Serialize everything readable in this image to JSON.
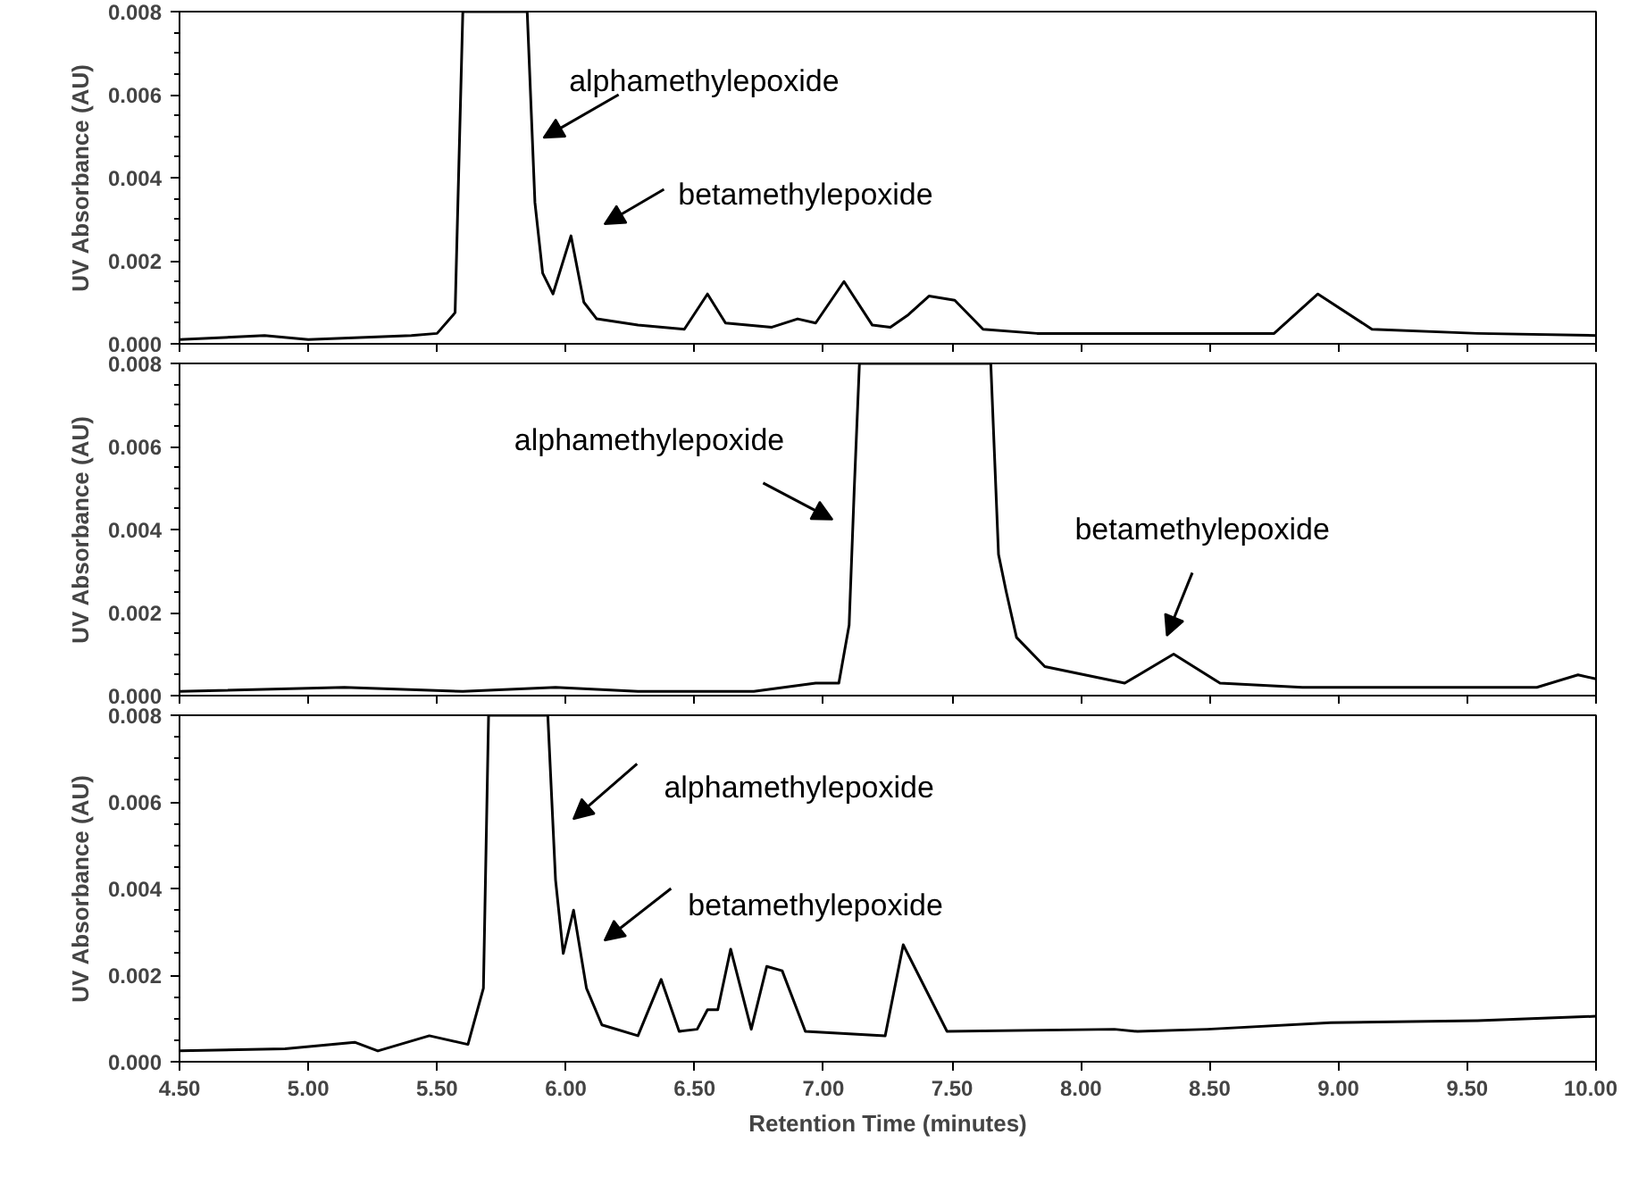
{
  "chart_data": [
    {
      "type": "line",
      "ylabel": "UV Absorbance (AU)",
      "tick_labels": "y",
      "grid": false,
      "xlim": [
        4.5,
        10.0
      ],
      "ylim": [
        0,
        0.008
      ],
      "xticks": [
        {
          "value": 4.5,
          "label": null
        },
        {
          "value": 5.0,
          "label": null
        },
        {
          "value": 5.5,
          "label": null
        },
        {
          "value": 6.0,
          "label": null
        },
        {
          "value": 6.5,
          "label": null
        },
        {
          "value": 7.0,
          "label": null
        },
        {
          "value": 7.5,
          "label": null
        },
        {
          "value": 8.0,
          "label": null
        },
        {
          "value": 8.5,
          "label": null
        },
        {
          "value": 9.0,
          "label": null
        },
        {
          "value": 9.5,
          "label": null
        },
        {
          "value": 10.0,
          "label": null
        }
      ],
      "yticks": [
        {
          "value": 0,
          "label": "0.000"
        },
        {
          "value": 0.002,
          "label": "0.002"
        },
        {
          "value": 0.004,
          "label": "0.004"
        },
        {
          "value": 0.006,
          "label": "0.006"
        },
        {
          "value": 0.008,
          "label": "0.008"
        }
      ],
      "series": [
        {
          "color": "#000000",
          "x": [
            4.5,
            4.83,
            5.0,
            5.4,
            5.5,
            5.57,
            5.6,
            5.85,
            5.88,
            5.91,
            5.95,
            6.02,
            6.07,
            6.12,
            6.28,
            6.46,
            6.55,
            6.62,
            6.8,
            6.9,
            6.97,
            7.08,
            7.19,
            7.26,
            7.33,
            7.41,
            7.51,
            7.62,
            7.83,
            8.75,
            8.92,
            9.13,
            9.54,
            10.0
          ],
          "values": [
            0.0001,
            0.0002,
            0.0001,
            0.0002,
            0.00025,
            0.00075,
            0.008,
            0.008,
            0.0034,
            0.0017,
            0.0012,
            0.0026,
            0.001,
            0.0006,
            0.00045,
            0.00035,
            0.0012,
            0.0005,
            0.0004,
            0.0006,
            0.0005,
            0.0015,
            0.00045,
            0.0004,
            0.0007,
            0.00115,
            0.00105,
            0.00035,
            0.00025,
            0.00025,
            0.0012,
            0.00035,
            0.00025,
            0.0002
          ]
        }
      ],
      "annotations": [
        "alphamethylepoxide",
        "betamethylepoxide"
      ]
    },
    {
      "type": "line",
      "ylabel": "UV Absorbance (AU)",
      "tick_labels": "y",
      "grid": false,
      "xlim": [
        4.5,
        10.0
      ],
      "ylim": [
        0,
        0.008
      ],
      "xticks": [
        {
          "value": 4.5,
          "label": null
        },
        {
          "value": 5.0,
          "label": null
        },
        {
          "value": 5.5,
          "label": null
        },
        {
          "value": 6.0,
          "label": null
        },
        {
          "value": 6.5,
          "label": null
        },
        {
          "value": 7.0,
          "label": null
        },
        {
          "value": 7.5,
          "label": null
        },
        {
          "value": 8.0,
          "label": null
        },
        {
          "value": 8.5,
          "label": null
        },
        {
          "value": 9.0,
          "label": null
        },
        {
          "value": 9.5,
          "label": null
        },
        {
          "value": 10.0,
          "label": null
        }
      ],
      "yticks": [
        {
          "value": 0,
          "label": "0.000"
        },
        {
          "value": 0.002,
          "label": "0.002"
        },
        {
          "value": 0.004,
          "label": "0.004"
        },
        {
          "value": 0.006,
          "label": "0.006"
        },
        {
          "value": 0.008,
          "label": "0.008"
        }
      ],
      "series": [
        {
          "color": "#000000",
          "x": [
            4.5,
            5.14,
            5.6,
            5.96,
            6.28,
            6.73,
            6.97,
            7.06,
            7.1,
            7.12,
            7.14,
            7.65,
            7.68,
            7.71,
            7.75,
            7.86,
            8.17,
            8.36,
            8.54,
            8.86,
            9.77,
            9.93,
            10.0
          ],
          "values": [
            0.0001,
            0.0002,
            0.0001,
            0.0002,
            0.0001,
            0.0001,
            0.0003,
            0.0003,
            0.0017,
            0.005,
            0.008,
            0.008,
            0.0034,
            0.0025,
            0.0014,
            0.0007,
            0.0003,
            0.001,
            0.0003,
            0.0002,
            0.0002,
            0.0005,
            0.0004
          ]
        }
      ],
      "annotations": [
        "alphamethylepoxide",
        "betamethylepoxide"
      ]
    },
    {
      "type": "line",
      "ylabel": "UV Absorbance (AU)",
      "xlabel": "Retention Time (minutes)",
      "grid": false,
      "xlim": [
        4.5,
        10.0
      ],
      "ylim": [
        0,
        0.008
      ],
      "xticks": [
        {
          "value": 4.5,
          "label": "4.50"
        },
        {
          "value": 5.0,
          "label": "5.00"
        },
        {
          "value": 5.5,
          "label": "5.50"
        },
        {
          "value": 6.0,
          "label": "6.00"
        },
        {
          "value": 6.5,
          "label": "6.50"
        },
        {
          "value": 7.0,
          "label": "7.00"
        },
        {
          "value": 7.5,
          "label": "7.50"
        },
        {
          "value": 8.0,
          "label": "8.00"
        },
        {
          "value": 8.5,
          "label": "8.50"
        },
        {
          "value": 9.0,
          "label": "9.00"
        },
        {
          "value": 9.5,
          "label": "9.50"
        },
        {
          "value": 10.0,
          "label": "10.00"
        }
      ],
      "yticks": [
        {
          "value": 0,
          "label": "0.000"
        },
        {
          "value": 0.002,
          "label": "0.002"
        },
        {
          "value": 0.004,
          "label": "0.004"
        },
        {
          "value": 0.006,
          "label": "0.006"
        },
        {
          "value": 0.008,
          "label": "0.008"
        }
      ],
      "series": [
        {
          "color": "#000000",
          "x": [
            4.5,
            4.91,
            5.18,
            5.27,
            5.47,
            5.62,
            5.68,
            5.7,
            5.93,
            5.96,
            5.99,
            6.03,
            6.08,
            6.14,
            6.28,
            6.37,
            6.44,
            6.51,
            6.55,
            6.59,
            6.64,
            6.72,
            6.78,
            6.84,
            6.93,
            7.24,
            7.31,
            7.48,
            8.13,
            8.22,
            8.49,
            8.97,
            9.54,
            10.0
          ],
          "values": [
            0.00025,
            0.0003,
            0.00045,
            0.00025,
            0.0006,
            0.0004,
            0.0017,
            0.008,
            0.008,
            0.0042,
            0.0025,
            0.0035,
            0.0017,
            0.00085,
            0.0006,
            0.0019,
            0.0007,
            0.00075,
            0.0012,
            0.0012,
            0.0026,
            0.00075,
            0.0022,
            0.0021,
            0.0007,
            0.0006,
            0.0027,
            0.0007,
            0.00075,
            0.0007,
            0.00075,
            0.0009,
            0.00095,
            0.00105
          ]
        }
      ],
      "annotations": [
        "alphamethylepoxide",
        "betamethylepoxide"
      ]
    }
  ]
}
